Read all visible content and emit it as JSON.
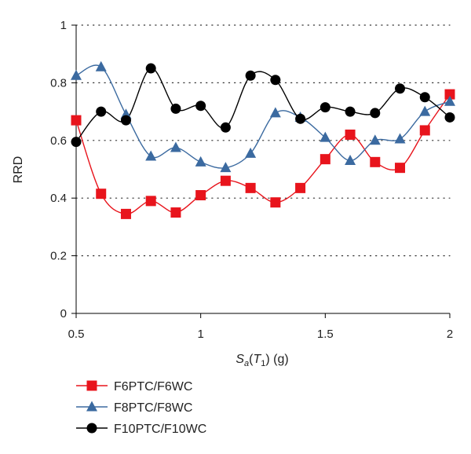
{
  "chart_data": {
    "type": "line",
    "xlabel": {
      "main": "S",
      "sub_a": "a",
      "paren_open": "(",
      "main_t": "T",
      "sub_1": "1",
      "paren_close": ")",
      "unit": " (g)"
    },
    "ylabel": "RRD",
    "xlim": [
      0.5,
      2.0
    ],
    "ylim": [
      0,
      1
    ],
    "xticks": [
      {
        "v": 0.5,
        "label": "0.5"
      },
      {
        "v": 1.0,
        "label": "1"
      },
      {
        "v": 1.5,
        "label": "1.5"
      },
      {
        "v": 2.0,
        "label": "2"
      }
    ],
    "yticks": [
      {
        "v": 0,
        "label": "0"
      },
      {
        "v": 0.2,
        "label": "0.2"
      },
      {
        "v": 0.4,
        "label": "0.4"
      },
      {
        "v": 0.6,
        "label": "0.6"
      },
      {
        "v": 0.8,
        "label": "0.8"
      },
      {
        "v": 1.0,
        "label": "1"
      }
    ],
    "grid": "horizontal-dotted",
    "legend_position": "bottom-left",
    "x": [
      0.5,
      0.6,
      0.7,
      0.8,
      0.9,
      1.0,
      1.1,
      1.2,
      1.3,
      1.4,
      1.5,
      1.6,
      1.7,
      1.8,
      1.9,
      2.0
    ],
    "series": [
      {
        "name": "F6PTC/F6WC",
        "marker": "square",
        "color": "#e8141c",
        "line_color": "#e8141c",
        "values": [
          0.67,
          0.415,
          0.345,
          0.39,
          0.35,
          0.41,
          0.46,
          0.435,
          0.385,
          0.435,
          0.535,
          0.62,
          0.525,
          0.505,
          0.635,
          0.76
        ]
      },
      {
        "name": "F8PTC/F8WC",
        "marker": "triangle",
        "color": "#3b6aa0",
        "line_color": "#3b6aa0",
        "values": [
          0.825,
          0.855,
          0.69,
          0.545,
          0.575,
          0.525,
          0.505,
          0.555,
          0.695,
          0.68,
          0.61,
          0.53,
          0.6,
          0.605,
          0.7,
          0.735
        ]
      },
      {
        "name": "F10PTC/F10WC",
        "marker": "circle",
        "color": "#000000",
        "line_color": "#000000",
        "values": [
          0.595,
          0.7,
          0.67,
          0.85,
          0.71,
          0.72,
          0.645,
          0.825,
          0.81,
          0.675,
          0.715,
          0.7,
          0.695,
          0.78,
          0.75,
          0.68
        ]
      }
    ]
  }
}
